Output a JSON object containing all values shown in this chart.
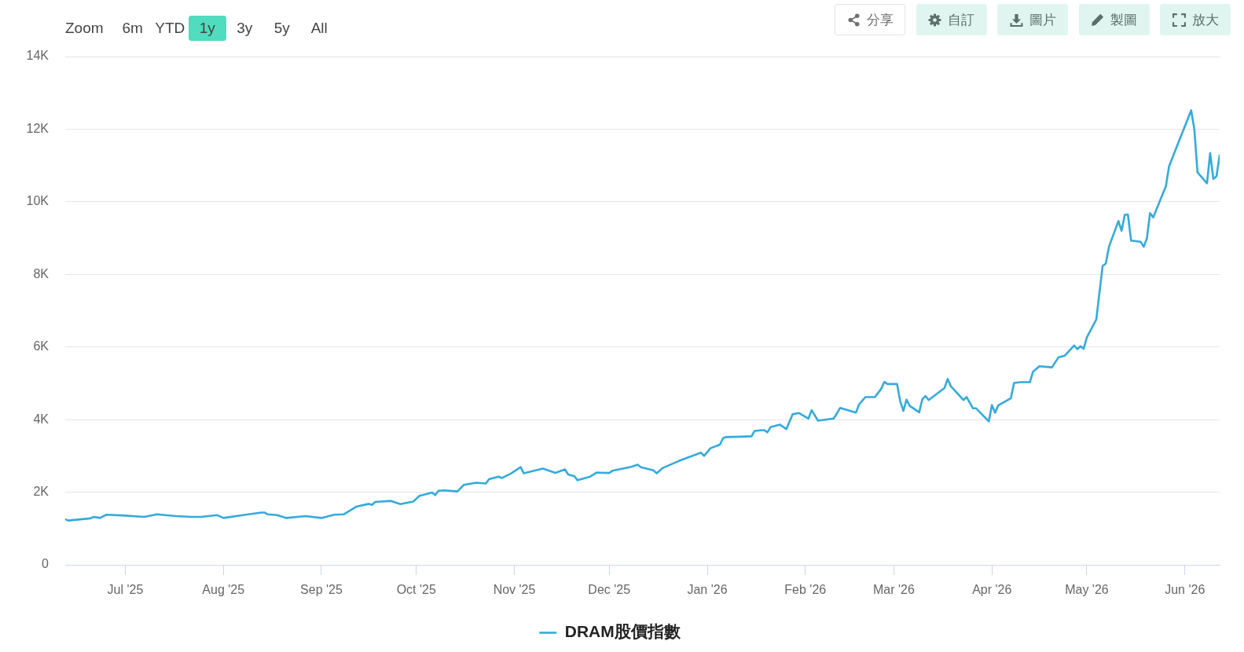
{
  "chart_data": {
    "type": "line",
    "annotations": [
      "Zoom",
      "6m",
      "YTD",
      "1y",
      "3y",
      "5y",
      "All",
      "分享",
      "自訂",
      "圖片",
      "製圖",
      "放大"
    ],
    "series": [
      {
        "name": "DRAM股價指數",
        "color": "#35aadc",
        "x": [
          "2025-06-12",
          "2025-06-13",
          "2025-06-20",
          "2025-06-21",
          "2025-06-23",
          "2025-06-25",
          "2025-06-30",
          "2025-07-07",
          "2025-07-11",
          "2025-07-17",
          "2025-07-22",
          "2025-07-25",
          "2025-07-30",
          "2025-08-01",
          "2025-08-08",
          "2025-08-13",
          "2025-08-14",
          "2025-08-15",
          "2025-08-18",
          "2025-08-21",
          "2025-08-27",
          "2025-09-01",
          "2025-09-05",
          "2025-09-08",
          "2025-09-12",
          "2025-09-16",
          "2025-09-17",
          "2025-09-18",
          "2025-09-23",
          "2025-09-26",
          "2025-09-30",
          "2025-10-02",
          "2025-10-06",
          "2025-10-07",
          "2025-10-08",
          "2025-10-10",
          "2025-10-14",
          "2025-10-16",
          "2025-10-20",
          "2025-10-23",
          "2025-10-24",
          "2025-10-27",
          "2025-10-28",
          "2025-10-31",
          "2025-11-03",
          "2025-11-04",
          "2025-11-10",
          "2025-11-14",
          "2025-11-17",
          "2025-11-18",
          "2025-11-20",
          "2025-11-21",
          "2025-11-25",
          "2025-11-27",
          "2025-12-01",
          "2025-12-02",
          "2025-12-08",
          "2025-12-10",
          "2025-12-11",
          "2025-12-15",
          "2025-12-16",
          "2025-12-18",
          "2025-12-23",
          "2025-12-30",
          "2025-12-31",
          "2026-01-02",
          "2026-01-05",
          "2026-01-06",
          "2026-01-07",
          "2026-01-12",
          "2026-01-15",
          "2026-01-16",
          "2026-01-19",
          "2026-01-20",
          "2026-01-21",
          "2026-01-24",
          "2026-01-26",
          "2026-01-28",
          "2026-01-30",
          "2026-02-02",
          "2026-02-03",
          "2026-02-05",
          "2026-02-10",
          "2026-02-12",
          "2026-02-17",
          "2026-02-18",
          "2026-02-20",
          "2026-02-23",
          "2026-02-25",
          "2026-02-26",
          "2026-02-27",
          "2026-03-02",
          "2026-03-03",
          "2026-03-04",
          "2026-03-05",
          "2026-03-06",
          "2026-03-09",
          "2026-03-10",
          "2026-03-11",
          "2026-03-12",
          "2026-03-17",
          "2026-03-18",
          "2026-03-19",
          "2026-03-23",
          "2026-03-24",
          "2026-03-26",
          "2026-03-27",
          "2026-03-31",
          "2026-04-01",
          "2026-04-02",
          "2026-04-03",
          "2026-04-07",
          "2026-04-08",
          "2026-04-10",
          "2026-04-13",
          "2026-04-14",
          "2026-04-16",
          "2026-04-20",
          "2026-04-22",
          "2026-04-24",
          "2026-04-27",
          "2026-04-28",
          "2026-04-29",
          "2026-04-30",
          "2026-05-01",
          "2026-05-04",
          "2026-05-06",
          "2026-05-07",
          "2026-05-08",
          "2026-05-11",
          "2026-05-12",
          "2026-05-13",
          "2026-05-14",
          "2026-05-15",
          "2026-05-18",
          "2026-05-19",
          "2026-05-20",
          "2026-05-21",
          "2026-05-22",
          "2026-05-26",
          "2026-05-27",
          "2026-05-29",
          "2026-06-03",
          "2026-06-04",
          "2026-06-05",
          "2026-06-08",
          "2026-06-09",
          "2026-06-10",
          "2026-06-11",
          "2026-06-12"
        ],
        "values": [
          1250,
          1220,
          1280,
          1320,
          1290,
          1380,
          1360,
          1320,
          1390,
          1340,
          1320,
          1320,
          1370,
          1290,
          1380,
          1440,
          1440,
          1390,
          1370,
          1290,
          1340,
          1290,
          1380,
          1390,
          1600,
          1680,
          1650,
          1730,
          1760,
          1670,
          1740,
          1900,
          1990,
          1920,
          2040,
          2050,
          2020,
          2200,
          2260,
          2240,
          2360,
          2430,
          2390,
          2520,
          2690,
          2520,
          2650,
          2530,
          2630,
          2490,
          2440,
          2330,
          2430,
          2540,
          2530,
          2590,
          2700,
          2760,
          2690,
          2600,
          2520,
          2670,
          2860,
          3090,
          3000,
          3210,
          3310,
          3490,
          3520,
          3530,
          3540,
          3690,
          3710,
          3650,
          3790,
          3860,
          3740,
          4150,
          4180,
          4030,
          4260,
          3970,
          4030,
          4320,
          4190,
          4420,
          4620,
          4620,
          4850,
          5040,
          4980,
          4980,
          4510,
          4240,
          4550,
          4380,
          4200,
          4560,
          4650,
          4540,
          4870,
          5120,
          4920,
          4540,
          4620,
          4310,
          4310,
          3950,
          4400,
          4190,
          4390,
          4590,
          5010,
          5030,
          5030,
          5320,
          5470,
          5440,
          5710,
          5760,
          6040,
          5940,
          6020,
          5950,
          6260,
          6760,
          8230,
          8300,
          8760,
          9470,
          9200,
          9640,
          9650,
          8930,
          8900,
          8760,
          8990,
          9690,
          9570,
          10430,
          10970,
          11420,
          12520,
          12000,
          10810,
          10510,
          11340,
          10630,
          10700,
          11280
        ]
      }
    ],
    "xlim": [
      "2025-06-12",
      "2026-06-12"
    ],
    "xticks": [
      {
        "value": "2025-07-01",
        "label": "Jul '25"
      },
      {
        "value": "2025-08-01",
        "label": "Aug '25"
      },
      {
        "value": "2025-09-01",
        "label": "Sep '25"
      },
      {
        "value": "2025-10-01",
        "label": "Oct '25"
      },
      {
        "value": "2025-11-01",
        "label": "Nov '25"
      },
      {
        "value": "2025-12-01",
        "label": "Dec '25"
      },
      {
        "value": "2026-01-01",
        "label": "Jan '26"
      },
      {
        "value": "2026-02-01",
        "label": "Feb '26"
      },
      {
        "value": "2026-03-01",
        "label": "Mar '26"
      },
      {
        "value": "2026-04-01",
        "label": "Apr '26"
      },
      {
        "value": "2026-05-01",
        "label": "May '26"
      },
      {
        "value": "2026-06-01",
        "label": "Jun '26"
      }
    ],
    "ylim": [
      0,
      14000
    ],
    "yticks": [
      0,
      {
        "value": 2000,
        "label": "2K"
      },
      {
        "value": 4000,
        "label": "4K"
      },
      {
        "value": 6000,
        "label": "6K"
      },
      {
        "value": 8000,
        "label": "8K"
      },
      {
        "value": 10000,
        "label": "10K"
      },
      {
        "value": 12000,
        "label": "12K"
      },
      {
        "value": 14000,
        "label": "14K"
      }
    ],
    "grid": "y",
    "legend": "bottom"
  }
}
